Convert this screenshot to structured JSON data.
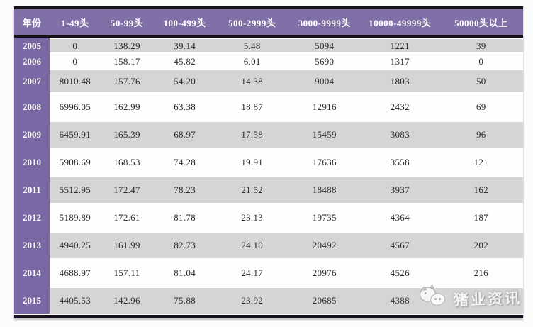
{
  "table": {
    "columns": [
      "年份",
      "1-49头",
      "50-99头",
      "100-499头",
      "500-2999头",
      "3000-9999头",
      "10000-49999头",
      "50000头以上"
    ],
    "rows": [
      {
        "year": "2005",
        "values": [
          "0",
          "138.29",
          "39.14",
          "5.48",
          "5094",
          "1221",
          "39"
        ]
      },
      {
        "year": "2006",
        "values": [
          "0",
          "158.17",
          "45.82",
          "6.01",
          "5690",
          "1317",
          "0"
        ]
      },
      {
        "year": "2007",
        "values": [
          "8010.48",
          "157.76",
          "54.20",
          "14.38",
          "9004",
          "1803",
          "50"
        ]
      },
      {
        "year": "2008",
        "values": [
          "6996.05",
          "162.99",
          "63.38",
          "18.87",
          "12916",
          "2432",
          "69"
        ]
      },
      {
        "year": "2009",
        "values": [
          "6459.91",
          "165.39",
          "68.97",
          "17.58",
          "15459",
          "3083",
          "96"
        ]
      },
      {
        "year": "2010",
        "values": [
          "5908.69",
          "168.53",
          "74.28",
          "19.91",
          "17636",
          "3558",
          "121"
        ]
      },
      {
        "year": "2011",
        "values": [
          "5512.95",
          "172.47",
          "78.23",
          "21.52",
          "18488",
          "3937",
          "162"
        ]
      },
      {
        "year": "2012",
        "values": [
          "5189.89",
          "172.61",
          "81.78",
          "23.13",
          "19735",
          "4364",
          "187"
        ]
      },
      {
        "year": "2013",
        "values": [
          "4940.25",
          "161.99",
          "82.73",
          "24.10",
          "20492",
          "4567",
          "202"
        ]
      },
      {
        "year": "2014",
        "values": [
          "4688.97",
          "157.11",
          "81.04",
          "24.17",
          "20976",
          "4526",
          "216"
        ]
      },
      {
        "year": "2015",
        "values": [
          "4405.53",
          "142.96",
          "75.88",
          "23.92",
          "20685",
          "4388",
          ""
        ]
      }
    ]
  },
  "watermark": {
    "label": "猪业资讯",
    "icon": "pig-logo-icon"
  },
  "colors": {
    "header_purple": "#8170A8",
    "year_purple": "#7A68A4",
    "row_gray": "#D6D5D6",
    "row_white": "#FEFEFE",
    "border_black": "#16101d"
  }
}
